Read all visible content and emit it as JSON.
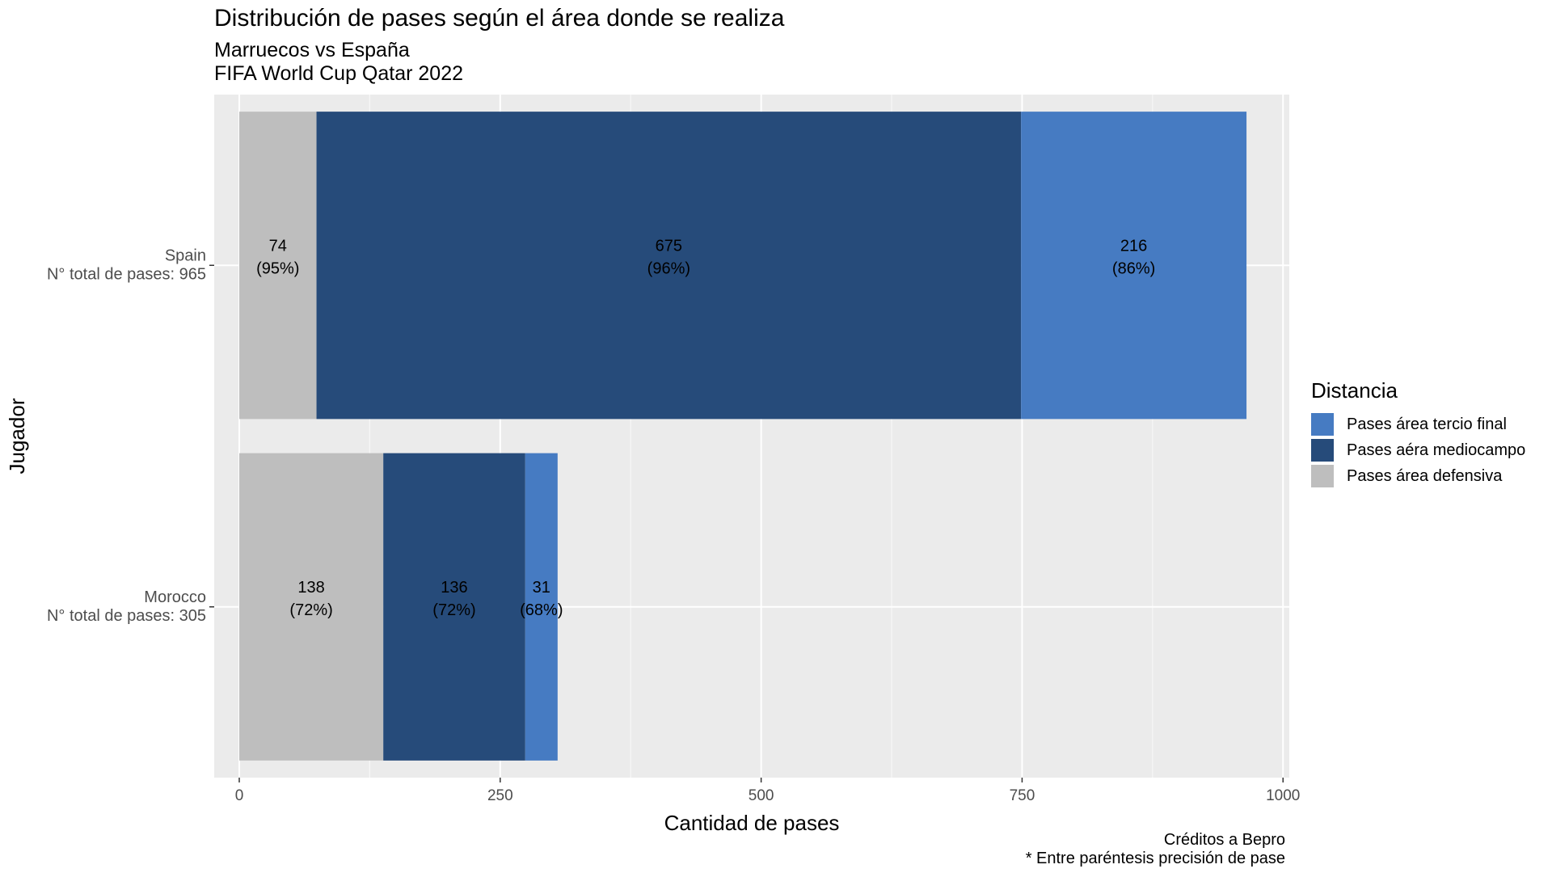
{
  "chart_data": {
    "type": "bar",
    "orientation": "horizontal",
    "stacked": true,
    "title": "Distribución de pases según el área donde se realiza",
    "subtitle": [
      "Marruecos vs España",
      "FIFA World Cup Qatar 2022"
    ],
    "xlabel": "Cantidad de pases",
    "ylabel": "Jugador",
    "xlim": [
      -24,
      1006
    ],
    "xticks": [
      0,
      250,
      500,
      750,
      1000
    ],
    "grid": true,
    "caption": [
      "Créditos a Bepro",
      "* Entre paréntesis precisión de pase"
    ],
    "legend": {
      "title": "Distancia",
      "position": "right"
    },
    "categories": [
      [
        "Spain",
        "N° total de pases: 965"
      ],
      [
        "Morocco",
        "N° total de pases: 305"
      ]
    ],
    "series": [
      {
        "name": "Pases área defensiva",
        "color": "#BEBEBE",
        "values": [
          74,
          138
        ],
        "labels": [
          [
            "74",
            "(95%)"
          ],
          [
            "138",
            "(72%)"
          ]
        ]
      },
      {
        "name": "Pases aéra mediocampo",
        "color": "#264B7A",
        "values": [
          675,
          136
        ],
        "labels": [
          [
            "675",
            "(96%)"
          ],
          [
            "136",
            "(72%)"
          ]
        ]
      },
      {
        "name": "Pases área tercio final",
        "color": "#467BC2",
        "values": [
          216,
          31
        ],
        "labels": [
          [
            "216",
            "(86%)"
          ],
          [
            "31",
            "(68%)"
          ]
        ]
      }
    ],
    "legend_order": [
      2,
      1,
      0
    ]
  }
}
